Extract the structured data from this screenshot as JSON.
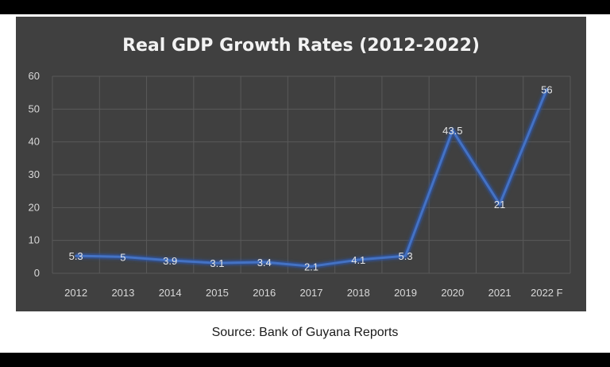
{
  "chart_data": {
    "type": "line",
    "title": "Real GDP Growth Rates (2012-2022)",
    "categories": [
      "2012",
      "2013",
      "2014",
      "2015",
      "2016",
      "2017",
      "2018",
      "2019",
      "2020",
      "2021",
      "2022 F"
    ],
    "series": [
      {
        "values": [
          5.3,
          5,
          3.9,
          3.1,
          3.4,
          2.1,
          4.1,
          5.3,
          43.5,
          21,
          56
        ]
      }
    ],
    "data_labels": [
      "5.3",
      "5",
      "3.9",
      "3.1",
      "3.4",
      "2.1",
      "4.1",
      "5.3",
      "43.5",
      "21",
      "56"
    ],
    "ylim": [
      0,
      60
    ],
    "yticks": [
      0,
      10,
      20,
      30,
      40,
      50,
      60
    ],
    "grid": true,
    "legend": "none",
    "colors": {
      "line": "#4472c4",
      "panel": "#404040",
      "text": "#d9d9d9",
      "grid": "#595959"
    }
  },
  "source": "Source: Bank of Guyana Reports"
}
